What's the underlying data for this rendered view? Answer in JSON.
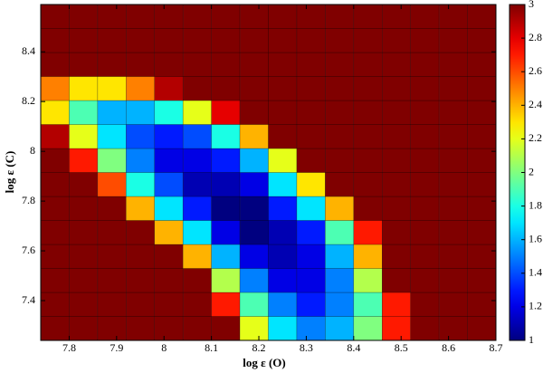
{
  "chart_data": {
    "type": "heatmap",
    "xlabel": "log ε (O)",
    "ylabel": "log ε (C)",
    "xlim": [
      7.74,
      8.7
    ],
    "ylim": [
      7.24,
      8.59
    ],
    "zlim": [
      1,
      3
    ],
    "xticks": [
      7.8,
      7.9,
      8,
      8.1,
      8.2,
      8.3,
      8.4,
      8.5,
      8.6,
      8.7
    ],
    "yticks": [
      7.4,
      7.6,
      7.8,
      8,
      8.2,
      8.4
    ],
    "zticks": [
      1,
      1.2,
      1.4,
      1.6,
      1.8,
      2,
      2.2,
      2.4,
      2.6,
      2.8,
      3
    ],
    "colormap": "jet",
    "z": [
      [
        3,
        3,
        3,
        3,
        3,
        3,
        3,
        2.2,
        1.7,
        1.5,
        1.6,
        2.0,
        2.7,
        3,
        3,
        3
      ],
      [
        3,
        3,
        3,
        3,
        3,
        3,
        2.7,
        1.9,
        1.5,
        1.3,
        1.5,
        1.9,
        2.7,
        3,
        3,
        3
      ],
      [
        3,
        3,
        3,
        3,
        3,
        3,
        2.1,
        1.5,
        1.2,
        1.2,
        1.5,
        2.1,
        3,
        3,
        3,
        3
      ],
      [
        3,
        3,
        3,
        3,
        3,
        2.4,
        1.6,
        1.2,
        1.1,
        1.2,
        1.6,
        2.4,
        3,
        3,
        3,
        3
      ],
      [
        3,
        3,
        3,
        3,
        2.4,
        1.7,
        1.2,
        1.0,
        1.1,
        1.3,
        1.9,
        2.7,
        3,
        3,
        3,
        3
      ],
      [
        3,
        3,
        3,
        2.4,
        1.7,
        1.3,
        1.0,
        1.0,
        1.3,
        1.7,
        2.4,
        3,
        3,
        3,
        3,
        3
      ],
      [
        3,
        3,
        2.6,
        1.8,
        1.4,
        1.1,
        1.1,
        1.2,
        1.7,
        2.3,
        3,
        3,
        3,
        3,
        3,
        3
      ],
      [
        3,
        2.7,
        2.0,
        1.5,
        1.2,
        1.2,
        1.3,
        1.6,
        2.2,
        3,
        3,
        3,
        3,
        3,
        3,
        3
      ],
      [
        2.9,
        2.2,
        1.7,
        1.4,
        1.3,
        1.4,
        1.8,
        2.4,
        3,
        3,
        3,
        3,
        3,
        3,
        3,
        3
      ],
      [
        2.3,
        1.9,
        1.6,
        1.6,
        1.8,
        2.2,
        2.8,
        3,
        3,
        3,
        3,
        3,
        3,
        3,
        3,
        3
      ],
      [
        2.5,
        2.3,
        2.3,
        2.5,
        2.9,
        3,
        3,
        3,
        3,
        3,
        3,
        3,
        3,
        3,
        3,
        3
      ],
      [
        3,
        3,
        3,
        3,
        3,
        3,
        3,
        3,
        3,
        3,
        3,
        3,
        3,
        3,
        3,
        3
      ],
      [
        3,
        3,
        3,
        3,
        3,
        3,
        3,
        3,
        3,
        3,
        3,
        3,
        3,
        3,
        3,
        3
      ],
      [
        3,
        3,
        3,
        3,
        3,
        3,
        3,
        3,
        3,
        3,
        3,
        3,
        3,
        3,
        3,
        3
      ]
    ]
  }
}
